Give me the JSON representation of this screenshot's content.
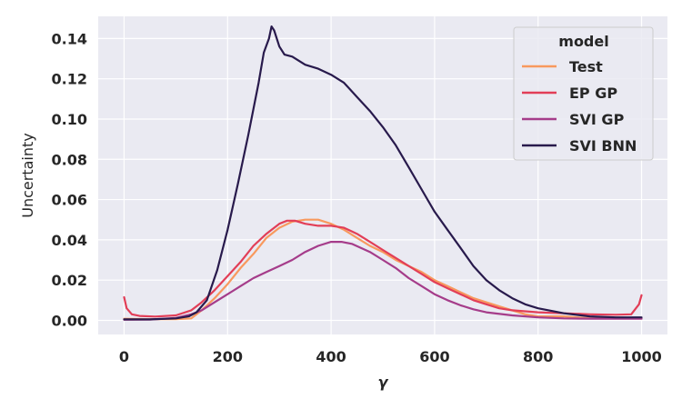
{
  "chart_data": {
    "type": "line",
    "title": "",
    "xlabel": "γ",
    "ylabel": "Uncertainty",
    "xlim": [
      -50,
      1050
    ],
    "ylim": [
      -0.007,
      0.151
    ],
    "x_ticks": [
      0,
      200,
      400,
      600,
      800,
      1000
    ],
    "x_tick_labels": [
      "0",
      "200",
      "400",
      "600",
      "800",
      "1000"
    ],
    "y_ticks": [
      0.0,
      0.02,
      0.04,
      0.06,
      0.08,
      0.1,
      0.12,
      0.14
    ],
    "y_tick_labels": [
      "0.00",
      "0.02",
      "0.04",
      "0.06",
      "0.08",
      "0.10",
      "0.12",
      "0.14"
    ],
    "grid": true,
    "legend": {
      "title": "model",
      "position": "top-right"
    },
    "series": [
      {
        "name": "Test",
        "color": "#f8995e",
        "points": [
          [
            0,
            0.0008
          ],
          [
            50,
            0.0006
          ],
          [
            100,
            0.0006
          ],
          [
            130,
            0.001
          ],
          [
            150,
            0.005
          ],
          [
            175,
            0.011
          ],
          [
            200,
            0.018
          ],
          [
            225,
            0.026
          ],
          [
            250,
            0.033
          ],
          [
            275,
            0.041
          ],
          [
            300,
            0.046
          ],
          [
            325,
            0.049
          ],
          [
            350,
            0.05
          ],
          [
            375,
            0.05
          ],
          [
            400,
            0.048
          ],
          [
            425,
            0.045
          ],
          [
            450,
            0.041
          ],
          [
            475,
            0.037
          ],
          [
            500,
            0.034
          ],
          [
            525,
            0.03
          ],
          [
            550,
            0.027
          ],
          [
            575,
            0.024
          ],
          [
            600,
            0.02
          ],
          [
            625,
            0.017
          ],
          [
            650,
            0.014
          ],
          [
            675,
            0.011
          ],
          [
            700,
            0.009
          ],
          [
            725,
            0.007
          ],
          [
            750,
            0.005
          ],
          [
            775,
            0.003
          ],
          [
            800,
            0.002
          ],
          [
            850,
            0.002
          ],
          [
            900,
            0.001
          ],
          [
            950,
            0.001
          ],
          [
            1000,
            0.001
          ]
        ]
      },
      {
        "name": "EP GP",
        "color": "#e23e57",
        "points": [
          [
            0,
            0.0115
          ],
          [
            5,
            0.006
          ],
          [
            15,
            0.003
          ],
          [
            30,
            0.0022
          ],
          [
            60,
            0.0019
          ],
          [
            100,
            0.0025
          ],
          [
            130,
            0.005
          ],
          [
            150,
            0.009
          ],
          [
            175,
            0.015
          ],
          [
            200,
            0.022
          ],
          [
            225,
            0.029
          ],
          [
            250,
            0.037
          ],
          [
            275,
            0.043
          ],
          [
            300,
            0.048
          ],
          [
            315,
            0.0495
          ],
          [
            330,
            0.0495
          ],
          [
            350,
            0.048
          ],
          [
            375,
            0.047
          ],
          [
            400,
            0.047
          ],
          [
            425,
            0.046
          ],
          [
            450,
            0.043
          ],
          [
            475,
            0.039
          ],
          [
            500,
            0.035
          ],
          [
            525,
            0.031
          ],
          [
            550,
            0.027
          ],
          [
            575,
            0.023
          ],
          [
            600,
            0.019
          ],
          [
            625,
            0.016
          ],
          [
            650,
            0.013
          ],
          [
            675,
            0.01
          ],
          [
            700,
            0.008
          ],
          [
            725,
            0.006
          ],
          [
            750,
            0.005
          ],
          [
            800,
            0.004
          ],
          [
            850,
            0.0035
          ],
          [
            900,
            0.003
          ],
          [
            950,
            0.0028
          ],
          [
            980,
            0.003
          ],
          [
            995,
            0.008
          ],
          [
            1000,
            0.0125
          ]
        ]
      },
      {
        "name": "SVI GP",
        "color": "#a53c8a",
        "points": [
          [
            0,
            0.0003
          ],
          [
            50,
            0.0004
          ],
          [
            100,
            0.0012
          ],
          [
            130,
            0.003
          ],
          [
            150,
            0.005
          ],
          [
            175,
            0.009
          ],
          [
            200,
            0.013
          ],
          [
            225,
            0.017
          ],
          [
            250,
            0.021
          ],
          [
            275,
            0.024
          ],
          [
            300,
            0.027
          ],
          [
            325,
            0.03
          ],
          [
            350,
            0.034
          ],
          [
            375,
            0.037
          ],
          [
            400,
            0.039
          ],
          [
            420,
            0.039
          ],
          [
            440,
            0.038
          ],
          [
            475,
            0.034
          ],
          [
            500,
            0.03
          ],
          [
            525,
            0.026
          ],
          [
            550,
            0.021
          ],
          [
            575,
            0.017
          ],
          [
            600,
            0.013
          ],
          [
            625,
            0.01
          ],
          [
            650,
            0.0075
          ],
          [
            675,
            0.0055
          ],
          [
            700,
            0.004
          ],
          [
            750,
            0.0025
          ],
          [
            800,
            0.0015
          ],
          [
            850,
            0.001
          ],
          [
            900,
            0.0008
          ],
          [
            950,
            0.0008
          ],
          [
            1000,
            0.0008
          ]
        ]
      },
      {
        "name": "SVI BNN",
        "color": "#281a4c",
        "points": [
          [
            0,
            0.0005
          ],
          [
            50,
            0.0005
          ],
          [
            100,
            0.001
          ],
          [
            125,
            0.002
          ],
          [
            140,
            0.004
          ],
          [
            160,
            0.01
          ],
          [
            180,
            0.025
          ],
          [
            200,
            0.045
          ],
          [
            220,
            0.068
          ],
          [
            240,
            0.092
          ],
          [
            260,
            0.118
          ],
          [
            270,
            0.133
          ],
          [
            280,
            0.14
          ],
          [
            285,
            0.146
          ],
          [
            290,
            0.144
          ],
          [
            300,
            0.136
          ],
          [
            310,
            0.132
          ],
          [
            325,
            0.131
          ],
          [
            350,
            0.127
          ],
          [
            375,
            0.125
          ],
          [
            400,
            0.122
          ],
          [
            425,
            0.118
          ],
          [
            450,
            0.111
          ],
          [
            475,
            0.104
          ],
          [
            500,
            0.096
          ],
          [
            525,
            0.087
          ],
          [
            550,
            0.076
          ],
          [
            575,
            0.065
          ],
          [
            600,
            0.054
          ],
          [
            625,
            0.045
          ],
          [
            650,
            0.036
          ],
          [
            675,
            0.027
          ],
          [
            700,
            0.02
          ],
          [
            725,
            0.015
          ],
          [
            750,
            0.011
          ],
          [
            775,
            0.008
          ],
          [
            800,
            0.006
          ],
          [
            850,
            0.0035
          ],
          [
            900,
            0.002
          ],
          [
            950,
            0.0015
          ],
          [
            1000,
            0.0015
          ]
        ]
      }
    ]
  }
}
